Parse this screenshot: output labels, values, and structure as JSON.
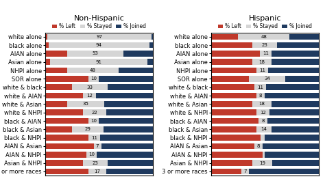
{
  "chart_data": [
    {
      "type": "bar",
      "orientation": "horizontal",
      "stacked": true,
      "title": "Non-Hispanic",
      "categories": [
        "white alone",
        "black alone",
        "AIAN alone",
        "Asian alone",
        "NHPI alone",
        "SOR alone",
        "white & black",
        "white & AIAN",
        "white & Asian",
        "white & NHPI",
        "black & AIAN",
        "black & Asian",
        "black & NHPI",
        "AIAN & Asian",
        "AIAN & NHPI",
        "Asian & NHPI",
        "3 or more races"
      ],
      "xlim": [
        0,
        100
      ],
      "tick_labels": "y",
      "legend": "lower center",
      "series": [
        {
          "name": "% Left",
          "color": "#c0392b",
          "values": [
            2,
            3,
            20,
            4,
            20,
            40,
            25,
            35,
            20,
            35,
            40,
            25,
            40,
            45,
            38,
            35,
            40
          ]
        },
        {
          "name": "% Stayed",
          "color": "#d5d5d5",
          "data_labels": true,
          "values": [
            97,
            94,
            53,
            91,
            48,
            10,
            33,
            12,
            35,
            22,
            10,
            29,
            11,
            7,
            10,
            23,
            17
          ],
          "value_labels": [
            "97",
            "94",
            "53",
            "91",
            "48",
            "10",
            "33",
            "12",
            "35",
            "22",
            "10",
            "29",
            "11",
            "7",
            "10",
            "23",
            "17"
          ]
        },
        {
          "name": "% Joined",
          "color": "#1f3a5f",
          "values": [
            1,
            3,
            27,
            5,
            32,
            50,
            42,
            53,
            45,
            43,
            50,
            46,
            49,
            48,
            52,
            42,
            43
          ]
        }
      ]
    },
    {
      "type": "bar",
      "orientation": "horizontal",
      "stacked": true,
      "title": "Hispanic",
      "categories": [
        "white alone",
        "black alone",
        "AIAN alone",
        "Asian alone",
        "NHPI alone",
        "SOR alone",
        "white & black",
        "white & AIAN",
        "white & Asian",
        "white & NHPI",
        "black & AIAN",
        "black & Asian",
        "black & NHPI",
        "AIAN & Asian",
        "AIAN & NHPI",
        "Asian & NHPI",
        "3 or more races"
      ],
      "xlim": [
        0,
        100
      ],
      "tick_labels": "y",
      "legend": "lower center",
      "series": [
        {
          "name": "% Left",
          "color": "#c0392b",
          "values": [
            25,
            38,
            45,
            38,
            42,
            35,
            40,
            42,
            38,
            42,
            44,
            42,
            46,
            40,
            48,
            38,
            28
          ]
        },
        {
          "name": "% Stayed",
          "color": "#d5d5d5",
          "data_labels": true,
          "values": [
            48,
            23,
            11,
            18,
            11,
            34,
            11,
            8,
            18,
            12,
            8,
            14,
            4,
            8,
            2,
            19,
            7
          ],
          "value_labels": [
            "48",
            "23",
            "11",
            "18",
            "11",
            "34",
            "11",
            "8",
            "18",
            "12",
            "8",
            "14",
            null,
            "8",
            null,
            "19",
            "7"
          ]
        },
        {
          "name": "% Joined",
          "color": "#1f3a5f",
          "values": [
            27,
            39,
            44,
            44,
            47,
            31,
            49,
            50,
            44,
            46,
            48,
            44,
            50,
            52,
            50,
            43,
            65
          ]
        }
      ]
    }
  ]
}
